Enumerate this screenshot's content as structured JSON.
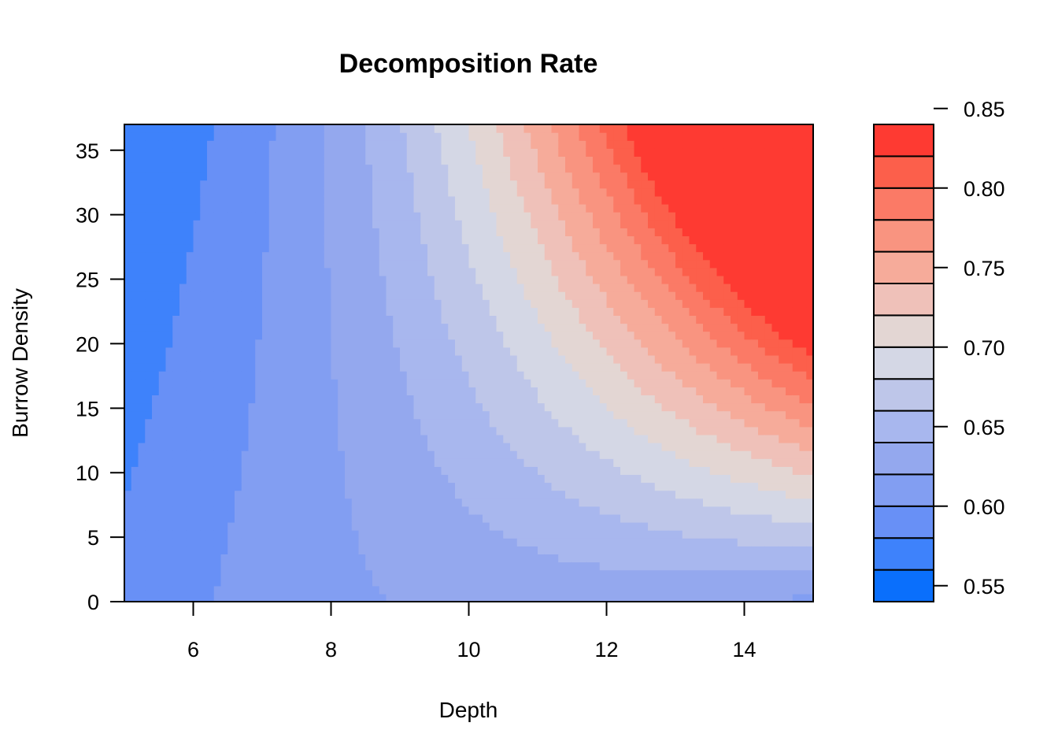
{
  "chart_data": {
    "type": "heatmap",
    "title": "Decomposition Rate",
    "xlabel": "Depth",
    "ylabel": "Burrow Density",
    "xlim": [
      5,
      15
    ],
    "ylim": [
      0,
      37
    ],
    "x_ticks": [
      6,
      8,
      10,
      12,
      14
    ],
    "y_ticks": [
      0,
      5,
      10,
      15,
      20,
      25,
      30,
      35
    ],
    "legend_ticks": [
      "0.55",
      "0.60",
      "0.65",
      "0.70",
      "0.75",
      "0.80",
      "0.85"
    ],
    "legend_position": "right",
    "color_levels": {
      "start": 0.54,
      "step": 0.02,
      "colors": [
        "#0a6ffc",
        "#3e82fb",
        "#6890f6",
        "#829ef2",
        "#94a8ee",
        "#a8b7ee",
        "#bec6e9",
        "#d4d7e5",
        "#e3d6d3",
        "#efc1b9",
        "#f6ab9a",
        "#f99480",
        "#fb7a66",
        "#fc5f4b",
        "#fe3a32"
      ]
    },
    "description": "Filled contour of decomposition rate over depth (x) and burrow density (y); rate increases with depth and with burrow density at greater depths.",
    "grid": false
  }
}
